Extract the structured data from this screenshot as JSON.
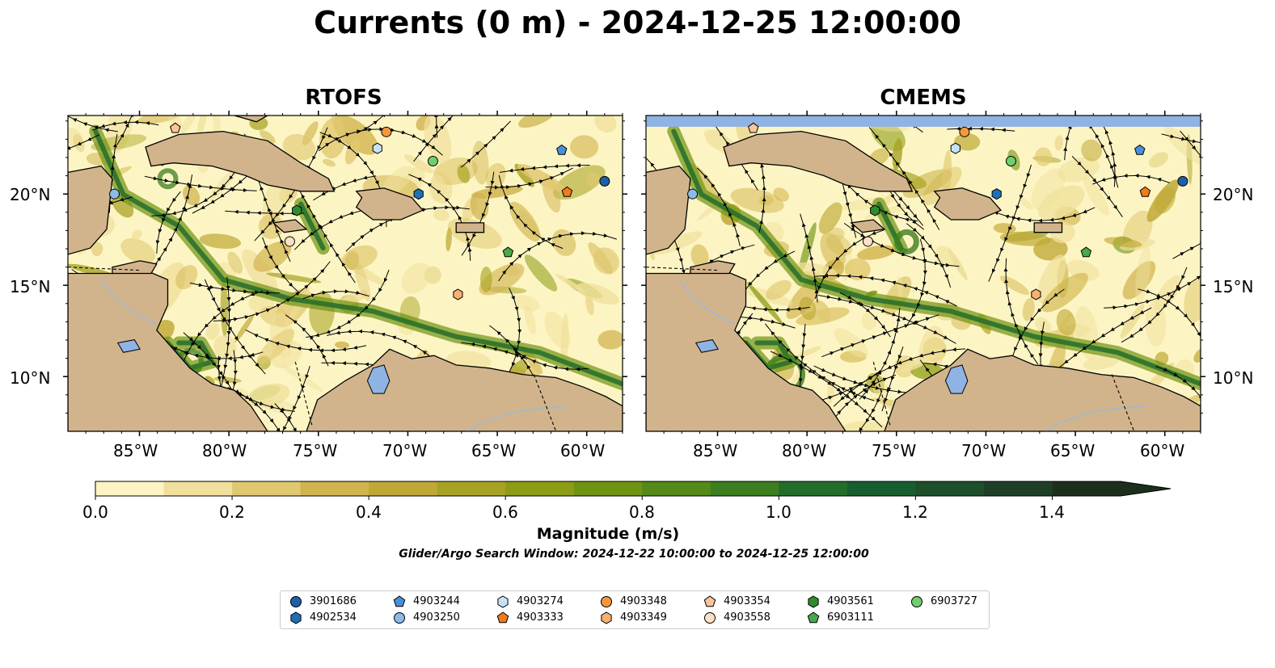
{
  "title": "Currents (0 m) - 2024-12-25 12:00:00",
  "panels": [
    {
      "id": "rtofs",
      "title": "RTOFS"
    },
    {
      "id": "cmems",
      "title": "CMEMS"
    }
  ],
  "lon_ticks": [
    "85°W",
    "80°W",
    "75°W",
    "70°W",
    "65°W",
    "60°W"
  ],
  "lat_ticks": [
    "20°N",
    "15°N",
    "10°N"
  ],
  "colorbar": {
    "label": "Magnitude (m/s)",
    "ticks": [
      "0.0",
      "0.2",
      "0.4",
      "0.6",
      "0.8",
      "1.0",
      "1.2",
      "1.4"
    ],
    "range": [
      0,
      1.5
    ],
    "extend": "max",
    "colors": [
      "#fcf5c3",
      "#f0e09c",
      "#e0c871",
      "#d1b44f",
      "#bfa836",
      "#a8a224",
      "#8c9c15",
      "#6f9312",
      "#538a18",
      "#3c7e1f",
      "#236d2a",
      "#175e2e",
      "#1c4f2a",
      "#1e3f25",
      "#1c2f1d"
    ]
  },
  "search_window": "Glider/Argo Search Window: 2024-12-22 10:00:00 to 2024-12-25 12:00:00",
  "map_colors": {
    "land": "#d2b48c",
    "water_body": "#8fb4e3",
    "river": "#9fb8d6"
  },
  "legend": [
    {
      "id": "3901686",
      "marker": "circle",
      "color": "#1f5fa8"
    },
    {
      "id": "4902534",
      "marker": "hexagon",
      "color": "#1f6fb8"
    },
    {
      "id": "4903244",
      "marker": "pentagon",
      "color": "#4a90d9"
    },
    {
      "id": "4903250",
      "marker": "circle",
      "color": "#8cbbea"
    },
    {
      "id": "4903274",
      "marker": "hexagon",
      "color": "#c7e2f7"
    },
    {
      "id": "4903333",
      "marker": "pentagon",
      "color": "#f07b1a"
    },
    {
      "id": "4903348",
      "marker": "circle",
      "color": "#f5973b"
    },
    {
      "id": "4903349",
      "marker": "hexagon",
      "color": "#f8b070"
    },
    {
      "id": "4903354",
      "marker": "pentagon",
      "color": "#f8c49a"
    },
    {
      "id": "4903558",
      "marker": "circle",
      "color": "#fbe0c7"
    },
    {
      "id": "4903561",
      "marker": "hexagon",
      "color": "#2e8b2e"
    },
    {
      "id": "6903111",
      "marker": "pentagon",
      "color": "#4aa84a"
    },
    {
      "id": "6903727",
      "marker": "circle",
      "color": "#6fcf6f"
    }
  ],
  "floats": [
    {
      "id": "4903354",
      "lon": -83.0,
      "lat": 23.6
    },
    {
      "id": "4903348",
      "lon": -71.2,
      "lat": 23.4
    },
    {
      "id": "4903274",
      "lon": -71.7,
      "lat": 22.5
    },
    {
      "id": "4903244",
      "lon": -61.4,
      "lat": 22.4
    },
    {
      "id": "6903727",
      "lon": -68.6,
      "lat": 21.8
    },
    {
      "id": "4903250",
      "lon": -86.4,
      "lat": 20.0
    },
    {
      "id": "4902534",
      "lon": -69.4,
      "lat": 20.0
    },
    {
      "id": "4903333",
      "lon": -61.1,
      "lat": 20.1
    },
    {
      "id": "3901686",
      "lon": -59.0,
      "lat": 20.7
    },
    {
      "id": "4903561",
      "lon": -76.2,
      "lat": 19.1
    },
    {
      "id": "4903558",
      "lon": -76.6,
      "lat": 17.4
    },
    {
      "id": "6903111",
      "lon": -64.4,
      "lat": 16.8
    },
    {
      "id": "4903349",
      "lon": -67.2,
      "lat": 14.5
    }
  ]
}
